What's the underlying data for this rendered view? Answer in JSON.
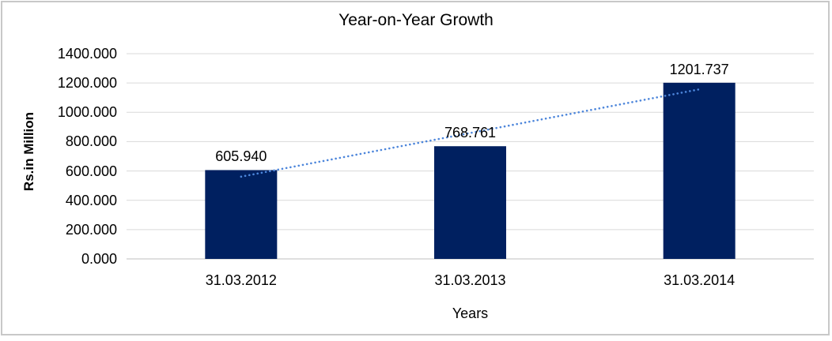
{
  "chart_data": {
    "type": "bar",
    "title": "Year-on-Year Growth",
    "xlabel": "Years",
    "ylabel": "Rs.in Million",
    "categories": [
      "31.03.2012",
      "31.03.2013",
      "31.03.2014"
    ],
    "values": [
      605.94,
      768.761,
      1201.737
    ],
    "data_labels": [
      "605.940",
      "768.761",
      "1201.737"
    ],
    "ylim": [
      0,
      1400
    ],
    "ytick_step": 200,
    "ytick_labels": [
      "0.000",
      "200.000",
      "400.000",
      "600.000",
      "800.000",
      "1000.000",
      "1200.000",
      "1400.000"
    ],
    "grid": true,
    "legend_position": "none",
    "colors": {
      "bar": "#002060",
      "trendline": "#4d86db",
      "gridline": "#d9d9d9",
      "axis_line": "#bfbfbf",
      "frame_border": "#c8c8c8",
      "text": "#000000"
    },
    "trendline": {
      "type": "linear",
      "style": "dotted"
    }
  }
}
